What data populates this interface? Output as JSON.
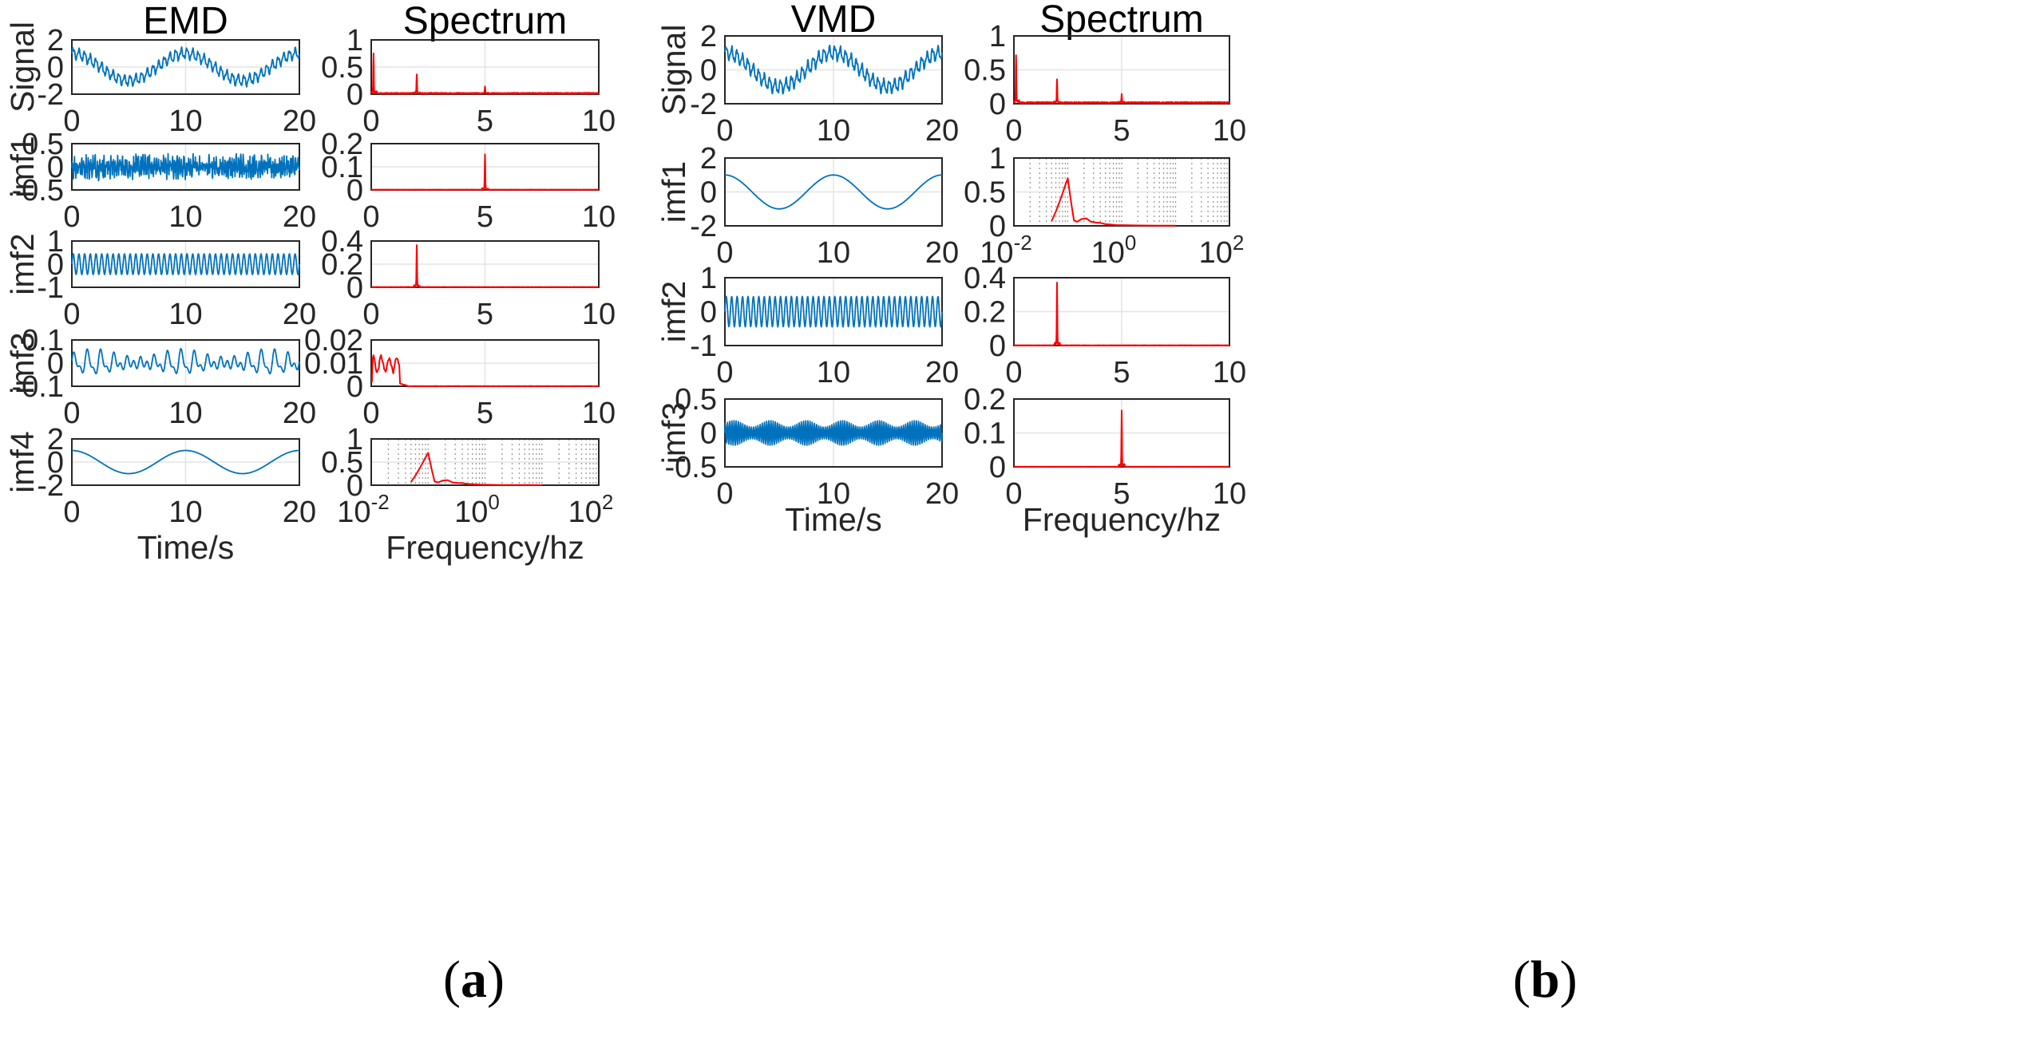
{
  "chart_data": [
    {
      "id": "a",
      "label_open": "(",
      "label_letter": "a",
      "label_close": ")",
      "columns": [
        {
          "title": "EMD",
          "xlabel": "Time/s",
          "rows": [
            {
              "type": "line",
              "signal": "signal",
              "ylabel": "Signal",
              "xlim": [
                0,
                20
              ],
              "xticks": [
                "0",
                "10",
                "20"
              ],
              "ylim": [
                -2,
                2
              ],
              "yticks": [
                "2",
                "0",
                "-2"
              ],
              "color": "#0072BD"
            },
            {
              "type": "line",
              "signal": "noise",
              "ylabel": "imf1",
              "xlim": [
                0,
                20
              ],
              "xticks": [
                "0",
                "10",
                "20"
              ],
              "ylim": [
                -0.5,
                0.5
              ],
              "yticks": [
                "0.5",
                "0",
                "-0.5"
              ],
              "color": "#0072BD"
            },
            {
              "type": "line",
              "signal": "sine2",
              "ylabel": "imf2",
              "xlim": [
                0,
                20
              ],
              "xticks": [
                "0",
                "10",
                "20"
              ],
              "ylim": [
                -1,
                1
              ],
              "yticks": [
                "1",
                "0",
                "-1"
              ],
              "color": "#0072BD"
            },
            {
              "type": "line",
              "signal": "wiggle",
              "ylabel": "imf3",
              "xlim": [
                0,
                20
              ],
              "xticks": [
                "0",
                "10",
                "20"
              ],
              "ylim": [
                -0.1,
                0.1
              ],
              "yticks": [
                "0.1",
                "0",
                "-0.1"
              ],
              "color": "#0072BD"
            },
            {
              "type": "line",
              "signal": "cos01",
              "ylabel": "imf4",
              "xlim": [
                0,
                20
              ],
              "xticks": [
                "0",
                "10",
                "20"
              ],
              "ylim": [
                -2,
                2
              ],
              "yticks": [
                "2",
                "0",
                "-2"
              ],
              "color": "#0072BD"
            }
          ]
        },
        {
          "title": "Spectrum",
          "xlabel": "Frequency/hz",
          "rows": [
            {
              "type": "spectrum",
              "peaks": [
                [
                  0.1,
                  0.7
                ],
                [
                  2,
                  0.35
                ],
                [
                  5,
                  0.12
                ]
              ],
              "floor": 0.02,
              "xlim": [
                0,
                10
              ],
              "xticks": [
                "0",
                "5",
                "10"
              ],
              "ylim": [
                0,
                1
              ],
              "yticks": [
                "1",
                "0.5",
                "0"
              ],
              "color": "#FF0000"
            },
            {
              "type": "spectrum",
              "peaks": [
                [
                  5,
                  0.15
                ]
              ],
              "floor": 0.006,
              "xlim": [
                0,
                10
              ],
              "xticks": [
                "0",
                "5",
                "10"
              ],
              "ylim": [
                0,
                0.2
              ],
              "yticks": [
                "0.2",
                "0.1",
                "0"
              ],
              "color": "#FF0000"
            },
            {
              "type": "spectrum",
              "peaks": [
                [
                  2,
                  0.36
                ]
              ],
              "floor": 0.006,
              "xlim": [
                0,
                10
              ],
              "xticks": [
                "0",
                "5",
                "10"
              ],
              "ylim": [
                0,
                0.4
              ],
              "yticks": [
                "0.4",
                "0.2",
                "0"
              ],
              "color": "#FF0000"
            },
            {
              "type": "lowband",
              "xlim": [
                0,
                10
              ],
              "xticks": [
                "0",
                "5",
                "10"
              ],
              "ylim": [
                0,
                0.02
              ],
              "yticks": [
                "0.02",
                "0.01",
                "0"
              ],
              "color": "#FF0000"
            },
            {
              "type": "logspec",
              "xlim": [
                0.01,
                100
              ],
              "xticks_base": [
                "10",
                "10",
                "10"
              ],
              "xticks_exp": [
                "-2",
                "0",
                "2"
              ],
              "ylim": [
                0,
                1
              ],
              "yticks": [
                "1",
                "0.5",
                "0"
              ],
              "color": "#FF0000"
            }
          ]
        }
      ]
    },
    {
      "id": "b",
      "label_open": "(",
      "label_letter": "b",
      "label_close": ")",
      "columns": [
        {
          "title": "VMD",
          "xlabel": "Time/s",
          "rows": [
            {
              "type": "line",
              "signal": "signal",
              "ylabel": "Signal",
              "xlim": [
                0,
                20
              ],
              "xticks": [
                "0",
                "10",
                "20"
              ],
              "ylim": [
                -2,
                2
              ],
              "yticks": [
                "2",
                "0",
                "-2"
              ],
              "color": "#0072BD"
            },
            {
              "type": "line",
              "signal": "cos01",
              "ylabel": "imf1",
              "xlim": [
                0,
                20
              ],
              "xticks": [
                "0",
                "10",
                "20"
              ],
              "ylim": [
                -2,
                2
              ],
              "yticks": [
                "2",
                "0",
                "-2"
              ],
              "color": "#0072BD"
            },
            {
              "type": "line",
              "signal": "sine2",
              "ylabel": "imf2",
              "xlim": [
                0,
                20
              ],
              "xticks": [
                "0",
                "10",
                "20"
              ],
              "ylim": [
                -1,
                1
              ],
              "yticks": [
                "1",
                "0",
                "-1"
              ],
              "color": "#0072BD"
            },
            {
              "type": "line",
              "signal": "sine5",
              "ylabel": "imf3",
              "xlim": [
                0,
                20
              ],
              "xticks": [
                "0",
                "10",
                "20"
              ],
              "ylim": [
                -0.5,
                0.5
              ],
              "yticks": [
                "0.5",
                "0",
                "-0.5"
              ],
              "color": "#0072BD"
            }
          ]
        },
        {
          "title": "Spectrum",
          "xlabel": "Frequency/hz",
          "rows": [
            {
              "type": "spectrum",
              "peaks": [
                [
                  0.1,
                  0.7
                ],
                [
                  2,
                  0.35
                ],
                [
                  5,
                  0.12
                ]
              ],
              "floor": 0.02,
              "xlim": [
                0,
                10
              ],
              "xticks": [
                "0",
                "5",
                "10"
              ],
              "ylim": [
                0,
                1
              ],
              "yticks": [
                "1",
                "0.5",
                "0"
              ],
              "color": "#FF0000"
            },
            {
              "type": "logspec",
              "xlim": [
                0.01,
                100
              ],
              "xticks_base": [
                "10",
                "10",
                "10"
              ],
              "xticks_exp": [
                "-2",
                "0",
                "2"
              ],
              "ylim": [
                0,
                1
              ],
              "yticks": [
                "1",
                "0.5",
                "0"
              ],
              "color": "#FF0000"
            },
            {
              "type": "spectrum",
              "peaks": [
                [
                  2,
                  0.36
                ]
              ],
              "floor": 0.004,
              "xlim": [
                0,
                10
              ],
              "xticks": [
                "0",
                "5",
                "10"
              ],
              "ylim": [
                0,
                0.4
              ],
              "yticks": [
                "0.4",
                "0.2",
                "0"
              ],
              "color": "#FF0000"
            },
            {
              "type": "spectrum",
              "peaks": [
                [
                  5,
                  0.16
                ]
              ],
              "floor": 0.002,
              "xlim": [
                0,
                10
              ],
              "xticks": [
                "0",
                "5",
                "10"
              ],
              "ylim": [
                0,
                0.2
              ],
              "yticks": [
                "0.2",
                "0.1",
                "0"
              ],
              "color": "#FF0000"
            }
          ]
        }
      ]
    }
  ]
}
